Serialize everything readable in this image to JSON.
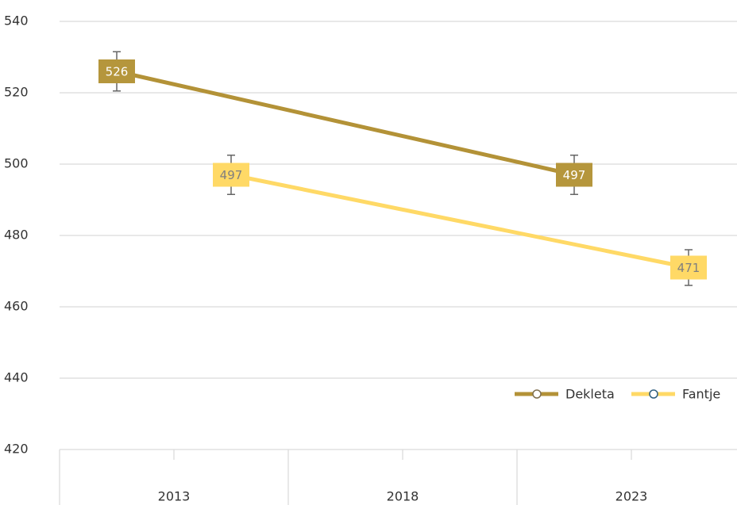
{
  "chart_data": {
    "type": "line",
    "categories": [
      "2013",
      "2018",
      "2023"
    ],
    "series": [
      {
        "name": "Dekleta",
        "color": "#b39237",
        "x": [
          "2013",
          "2023"
        ],
        "values": [
          526,
          497
        ],
        "errors": [
          5.5,
          5.5
        ]
      },
      {
        "name": "Fantje",
        "color": "#ffd966",
        "x": [
          "2013",
          "2023"
        ],
        "values": [
          497,
          471
        ],
        "errors": [
          5.5,
          5
        ]
      }
    ],
    "ylim": [
      420,
      540
    ],
    "yticks": [
      420,
      440,
      460,
      480,
      500,
      520,
      540
    ],
    "grid": true,
    "legend": "right"
  }
}
